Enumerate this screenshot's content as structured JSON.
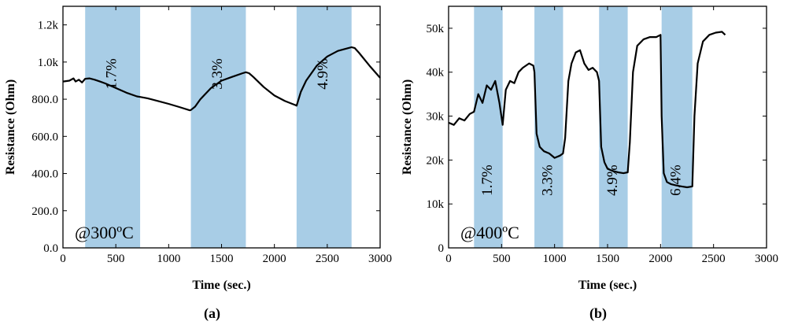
{
  "chart_data": [
    {
      "type": "line",
      "panel_label": "(a)",
      "xlabel": "Time (sec.)",
      "ylabel": "Resistance (Ohm)",
      "xlim": [
        0,
        3000
      ],
      "ylim": [
        0,
        1300
      ],
      "x_ticks": [
        0,
        500,
        1000,
        1500,
        2000,
        2500,
        3000
      ],
      "x_tick_labels": [
        "0",
        "500",
        "1000",
        "1500",
        "2000",
        "2500",
        "3000"
      ],
      "y_ticks": [
        0,
        200,
        400,
        600,
        800,
        1000,
        1200
      ],
      "y_tick_labels": [
        "0.0",
        "200.0",
        "400.0",
        "600.0",
        "800.0",
        "1.0k",
        "1.2k"
      ],
      "condition_label": "@300ºC",
      "shaded_intervals": [
        {
          "start": 210,
          "end": 730,
          "label": "1.7%"
        },
        {
          "start": 1210,
          "end": 1730,
          "label": "3.3%"
        },
        {
          "start": 2210,
          "end": 2730,
          "label": "4.9%"
        }
      ],
      "band_color": "#a8cde6",
      "line_color": "#000000",
      "series": [
        {
          "name": "Resistance",
          "x": [
            0,
            60,
            100,
            120,
            150,
            180,
            210,
            250,
            300,
            350,
            400,
            500,
            600,
            700,
            730,
            800,
            900,
            1000,
            1100,
            1200,
            1210,
            1250,
            1300,
            1400,
            1500,
            1600,
            1700,
            1730,
            1760,
            1800,
            1900,
            2000,
            2100,
            2200,
            2210,
            2250,
            2300,
            2400,
            2500,
            2600,
            2700,
            2730,
            2760,
            2800,
            2900,
            3000
          ],
          "y": [
            895,
            900,
            912,
            895,
            905,
            890,
            910,
            912,
            905,
            895,
            885,
            860,
            835,
            815,
            812,
            805,
            790,
            775,
            758,
            740,
            742,
            760,
            800,
            860,
            900,
            920,
            940,
            945,
            940,
            920,
            865,
            820,
            790,
            768,
            765,
            840,
            900,
            980,
            1030,
            1060,
            1075,
            1080,
            1075,
            1050,
            980,
            915
          ]
        }
      ]
    },
    {
      "type": "line",
      "panel_label": "(b)",
      "xlabel": "Time (sec.)",
      "ylabel": "Resistance (Ohm)",
      "xlim": [
        0,
        3000
      ],
      "ylim": [
        0,
        55000
      ],
      "x_ticks": [
        0,
        500,
        1000,
        1500,
        2000,
        2500,
        3000
      ],
      "x_tick_labels": [
        "0",
        "500",
        "1000",
        "1500",
        "2000",
        "2500",
        "3000"
      ],
      "y_ticks": [
        0,
        10000,
        20000,
        30000,
        40000,
        50000
      ],
      "y_tick_labels": [
        "0",
        "10k",
        "20k",
        "30k",
        "40k",
        "50k"
      ],
      "condition_label": "@400ºC",
      "shaded_intervals": [
        {
          "start": 240,
          "end": 510,
          "label": "1.7%"
        },
        {
          "start": 810,
          "end": 1080,
          "label": "3.3%"
        },
        {
          "start": 1420,
          "end": 1690,
          "label": "4.9%"
        },
        {
          "start": 2010,
          "end": 2300,
          "label": "6.4%"
        }
      ],
      "band_color": "#a8cde6",
      "line_color": "#000000",
      "series": [
        {
          "name": "Resistance",
          "x": [
            0,
            50,
            100,
            150,
            200,
            240,
            280,
            320,
            360,
            400,
            440,
            480,
            510,
            540,
            580,
            620,
            660,
            700,
            760,
            800,
            810,
            830,
            860,
            900,
            950,
            1000,
            1050,
            1080,
            1100,
            1130,
            1160,
            1200,
            1240,
            1280,
            1320,
            1360,
            1400,
            1420,
            1440,
            1470,
            1500,
            1550,
            1600,
            1650,
            1690,
            1710,
            1740,
            1780,
            1840,
            1900,
            1960,
            2000,
            2010,
            2030,
            2060,
            2100,
            2150,
            2200,
            2250,
            2300,
            2320,
            2350,
            2400,
            2460,
            2520,
            2580,
            2610
          ],
          "y": [
            28500,
            28000,
            29500,
            29000,
            30500,
            31000,
            35000,
            33000,
            37000,
            36000,
            38000,
            33000,
            28000,
            36000,
            38000,
            37500,
            40000,
            41000,
            42000,
            41500,
            40000,
            26000,
            23000,
            22000,
            21500,
            20500,
            21000,
            21500,
            25000,
            38000,
            42000,
            44500,
            45000,
            42000,
            40500,
            41000,
            40000,
            38000,
            23000,
            19500,
            18000,
            17500,
            17200,
            17000,
            17200,
            24000,
            40000,
            46000,
            47500,
            48000,
            48000,
            48500,
            30000,
            17000,
            15000,
            14500,
            14200,
            14000,
            13800,
            14000,
            30000,
            42000,
            47000,
            48500,
            49000,
            49200,
            48500
          ]
        }
      ]
    }
  ]
}
